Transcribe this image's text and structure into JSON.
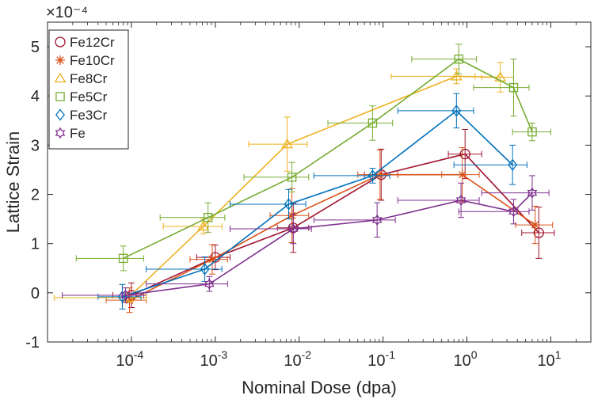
{
  "chart_data": {
    "type": "line",
    "xscale": "log",
    "xlim": [
      1e-05,
      30
    ],
    "ylim": [
      -1,
      5.5
    ],
    "exponent_label": "×10⁻⁴",
    "xlabel": "Nominal Dose (dpa)",
    "ylabel": "Lattice Strain",
    "grid": false,
    "legend_position": "top-left",
    "x_ticks": [
      {
        "value": 0.0001,
        "base": "10",
        "exp": "-4"
      },
      {
        "value": 0.001,
        "base": "10",
        "exp": "-3"
      },
      {
        "value": 0.01,
        "base": "10",
        "exp": "-2"
      },
      {
        "value": 0.1,
        "base": "10",
        "exp": "-1"
      },
      {
        "value": 1,
        "base": "10",
        "exp": "0"
      },
      {
        "value": 10,
        "base": "10",
        "exp": "1"
      }
    ],
    "y_ticks": [
      {
        "value": -1,
        "label": "-1"
      },
      {
        "value": 0,
        "label": "0"
      },
      {
        "value": 1,
        "label": "1"
      },
      {
        "value": 2,
        "label": "2"
      },
      {
        "value": 3,
        "label": "3"
      },
      {
        "value": 4,
        "label": "4"
      },
      {
        "value": 5,
        "label": "5"
      }
    ],
    "series": [
      {
        "name": "Fe12Cr",
        "color": "#a2142f",
        "marker": "circle",
        "points": [
          {
            "x": 0.0001,
            "y": -0.05,
            "x_lo": 6e-05,
            "x_hi": 0.00015,
            "y_err": 0.25
          },
          {
            "x": 0.001,
            "y": 0.72,
            "x_lo": 0.0006,
            "x_hi": 0.0015,
            "y_err": 0.25
          },
          {
            "x": 0.0085,
            "y": 1.32,
            "x_lo": 0.0055,
            "x_hi": 0.013,
            "y_err": 0.5
          },
          {
            "x": 0.095,
            "y": 2.4,
            "x_lo": 0.06,
            "x_hi": 0.15,
            "y_err": 0.52
          },
          {
            "x": 0.95,
            "y": 2.82,
            "x_lo": 0.6,
            "x_hi": 1.5,
            "y_err": 0.5
          },
          {
            "x": 7.2,
            "y": 1.22,
            "x_lo": 4.5,
            "x_hi": 11,
            "y_err": 0.52
          }
        ]
      },
      {
        "name": "Fe10Cr",
        "color": "#d95319",
        "marker": "star",
        "points": [
          {
            "x": 9.5e-05,
            "y": -0.15,
            "x_lo": 5e-05,
            "x_hi": 0.00015,
            "y_err": 0.25
          },
          {
            "x": 0.00092,
            "y": 0.68,
            "x_lo": 0.0005,
            "x_hi": 0.0014,
            "y_err": 0.3
          },
          {
            "x": 0.0082,
            "y": 1.57,
            "x_lo": 0.0045,
            "x_hi": 0.013,
            "y_err": 0.55
          },
          {
            "x": 0.092,
            "y": 2.4,
            "x_lo": 0.05,
            "x_hi": 0.15,
            "y_err": 0.5
          },
          {
            "x": 0.88,
            "y": 2.4,
            "x_lo": 0.5,
            "x_hi": 1.4,
            "y_err": 0.55
          },
          {
            "x": 6.5,
            "y": 1.38,
            "x_lo": 3.8,
            "x_hi": 10.5,
            "y_err": 0.38
          }
        ]
      },
      {
        "name": "Fe8Cr",
        "color": "#edb120",
        "marker": "triangle",
        "points": [
          {
            "x": 9.2e-05,
            "y": -0.1,
            "x_lo": 1.2e-05,
            "x_hi": 0.00015,
            "y_err": 0.08
          },
          {
            "x": 0.00072,
            "y": 1.35,
            "x_lo": 0.00024,
            "x_hi": 0.0012,
            "y_err": 0.15
          },
          {
            "x": 0.0072,
            "y": 3.02,
            "x_lo": 0.0025,
            "x_hi": 0.0125,
            "y_err": 0.55
          },
          {
            "x": 0.75,
            "y": 4.4,
            "x_lo": 0.125,
            "x_hi": 1.25,
            "y_err": 0.15
          },
          {
            "x": 2.5,
            "y": 4.38,
            "x_lo": 1.5,
            "x_hi": 3.6,
            "y_err": 0.3
          }
        ]
      },
      {
        "name": "Fe5Cr",
        "color": "#77ac30",
        "marker": "square",
        "points": [
          {
            "x": 8e-05,
            "y": 0.7,
            "x_lo": 2.2e-05,
            "x_hi": 0.00014,
            "y_err": 0.25
          },
          {
            "x": 0.00082,
            "y": 1.53,
            "x_lo": 0.00022,
            "x_hi": 0.0013,
            "y_err": 0.3
          },
          {
            "x": 0.0082,
            "y": 2.35,
            "x_lo": 0.0022,
            "x_hi": 0.013,
            "y_err": 0.3
          },
          {
            "x": 0.075,
            "y": 3.45,
            "x_lo": 0.022,
            "x_hi": 0.13,
            "y_err": 0.35
          },
          {
            "x": 0.8,
            "y": 4.75,
            "x_lo": 0.22,
            "x_hi": 1.3,
            "y_err": 0.3
          },
          {
            "x": 3.6,
            "y": 4.17,
            "x_lo": 1.2,
            "x_hi": 5.5,
            "y_err": 0.58
          },
          {
            "x": 6,
            "y": 3.27,
            "x_lo": 3.5,
            "x_hi": 10,
            "y_err": 0.18
          }
        ]
      },
      {
        "name": "Fe3Cr",
        "color": "#0072bd",
        "marker": "diamond",
        "points": [
          {
            "x": 7.8e-05,
            "y": -0.08,
            "x_lo": 4e-05,
            "x_hi": 0.00013,
            "y_err": 0.25
          },
          {
            "x": 0.00075,
            "y": 0.48,
            "x_lo": 0.00015,
            "x_hi": 0.0012,
            "y_err": 0.25
          },
          {
            "x": 0.0075,
            "y": 1.8,
            "x_lo": 0.0015,
            "x_hi": 0.012,
            "y_err": 0.3
          },
          {
            "x": 0.075,
            "y": 2.38,
            "x_lo": 0.015,
            "x_hi": 0.12,
            "y_err": 0.15
          },
          {
            "x": 0.75,
            "y": 3.7,
            "x_lo": 0.15,
            "x_hi": 1.2,
            "y_err": 0.35
          },
          {
            "x": 3.5,
            "y": 2.6,
            "x_lo": 0.7,
            "x_hi": 5.2,
            "y_err": 0.4
          }
        ]
      },
      {
        "name": "Fe",
        "color": "#7e2f8e",
        "marker": "hexagram",
        "points": [
          {
            "x": 8.5e-05,
            "y": -0.05,
            "x_lo": 1.5e-05,
            "x_hi": 0.00014,
            "y_err": 0.15
          },
          {
            "x": 0.00085,
            "y": 0.18,
            "x_lo": 0.00015,
            "x_hi": 0.0014,
            "y_err": 0.15
          },
          {
            "x": 0.0085,
            "y": 1.3,
            "x_lo": 0.0015,
            "x_hi": 0.014,
            "y_err": 0.3
          },
          {
            "x": 0.085,
            "y": 1.48,
            "x_lo": 0.015,
            "x_hi": 0.14,
            "y_err": 0.35
          },
          {
            "x": 0.85,
            "y": 1.88,
            "x_lo": 0.15,
            "x_hi": 1.4,
            "y_err": 0.35
          },
          {
            "x": 3.6,
            "y": 1.65,
            "x_lo": 0.8,
            "x_hi": 5.5,
            "y_err": 0.25
          },
          {
            "x": 6,
            "y": 2.03,
            "x_lo": 1.5,
            "x_hi": 9.5,
            "y_err": 0.35
          }
        ]
      }
    ]
  }
}
